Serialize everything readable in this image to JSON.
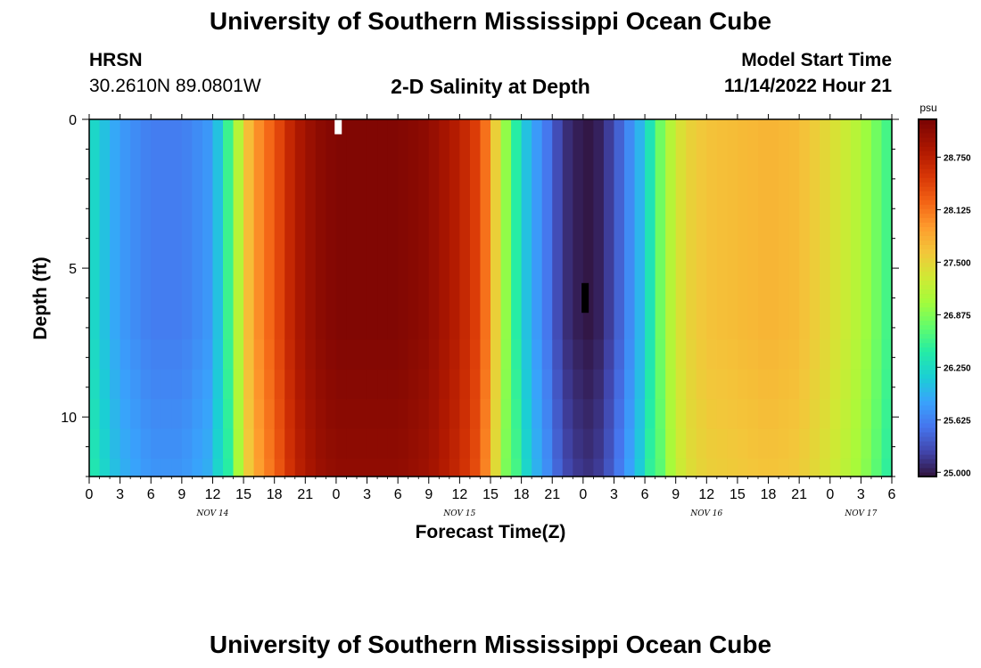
{
  "header": {
    "title": "University of Southern Mississippi Ocean Cube",
    "station": "HRSN",
    "coords": "30.2610N  89.0801W",
    "subtitle": "2-D Salinity at Depth",
    "start_label": "Model Start Time",
    "start_value": "11/14/2022 Hour 21"
  },
  "footer": {
    "title": "University of Southern Mississippi Ocean Cube"
  },
  "chart_data": {
    "type": "heatmap",
    "title": "2-D Salinity at Depth",
    "xlabel": "Forecast Time(Z)",
    "ylabel": "Depth (ft)",
    "x_hours_range": [
      0,
      78
    ],
    "ylim": [
      0,
      12
    ],
    "y_ticks": [
      0,
      5,
      10
    ],
    "x_tick_labels": [
      "0",
      "3",
      "6",
      "9",
      "12",
      "15",
      "18",
      "21",
      "0",
      "3",
      "6",
      "9",
      "12",
      "15",
      "18",
      "21",
      "0",
      "3",
      "6",
      "9",
      "12",
      "15",
      "18",
      "21",
      "0",
      "3",
      "6"
    ],
    "day_labels": [
      {
        "label": "NOV 14",
        "hour": 12
      },
      {
        "label": "NOV 15",
        "hour": 36
      },
      {
        "label": "NOV 16",
        "hour": 60
      },
      {
        "label": "NOV 17",
        "hour": 75
      }
    ],
    "colorbar": {
      "unit": "psu",
      "range": [
        24.95,
        29.2
      ],
      "ticks": [
        "28.750",
        "28.125",
        "27.500",
        "26.875",
        "26.250",
        "25.625",
        "25.000"
      ],
      "tick_values": [
        28.75,
        28.125,
        27.5,
        26.875,
        26.25,
        25.625,
        25.0
      ]
    },
    "surface_salinity_by_hour": [
      [
        0,
        26.3
      ],
      [
        3,
        25.8
      ],
      [
        6,
        25.6
      ],
      [
        9,
        25.6
      ],
      [
        12,
        25.8
      ],
      [
        14,
        26.8
      ],
      [
        15,
        27.5
      ],
      [
        16,
        27.9
      ],
      [
        18,
        28.3
      ],
      [
        20,
        28.8
      ],
      [
        22,
        29.05
      ],
      [
        24,
        29.15
      ],
      [
        30,
        29.15
      ],
      [
        33,
        29.05
      ],
      [
        36,
        28.75
      ],
      [
        38,
        28.4
      ],
      [
        39,
        27.9
      ],
      [
        40,
        27.2
      ],
      [
        41,
        26.7
      ],
      [
        42,
        26.2
      ],
      [
        43,
        25.9
      ],
      [
        45,
        25.45
      ],
      [
        46,
        25.15
      ],
      [
        48,
        24.98
      ],
      [
        49,
        24.98
      ],
      [
        50,
        25.1
      ],
      [
        51,
        25.3
      ],
      [
        52,
        25.55
      ],
      [
        54,
        26.1
      ],
      [
        55,
        26.6
      ],
      [
        56,
        27.0
      ],
      [
        57,
        27.3
      ],
      [
        58,
        27.5
      ],
      [
        60,
        27.65
      ],
      [
        63,
        27.7
      ],
      [
        66,
        27.75
      ],
      [
        69,
        27.7
      ],
      [
        72,
        27.45
      ],
      [
        75,
        27.1
      ],
      [
        77,
        26.7
      ],
      [
        78,
        26.5
      ]
    ],
    "depth_layers_ft": [
      0,
      7.4,
      8.4,
      9.4,
      10.4,
      11.4,
      12
    ],
    "layer_offsets_psu": [
      0,
      0.05,
      0.1,
      0.15,
      0.2,
      0.25
    ],
    "markers": [
      {
        "hour": 24,
        "depth_top": 0,
        "depth_bottom": 0.5,
        "color": "#ffffff"
      },
      {
        "hour": 48,
        "depth_top": 5.5,
        "depth_bottom": 6.5,
        "color": "#000000"
      }
    ]
  }
}
